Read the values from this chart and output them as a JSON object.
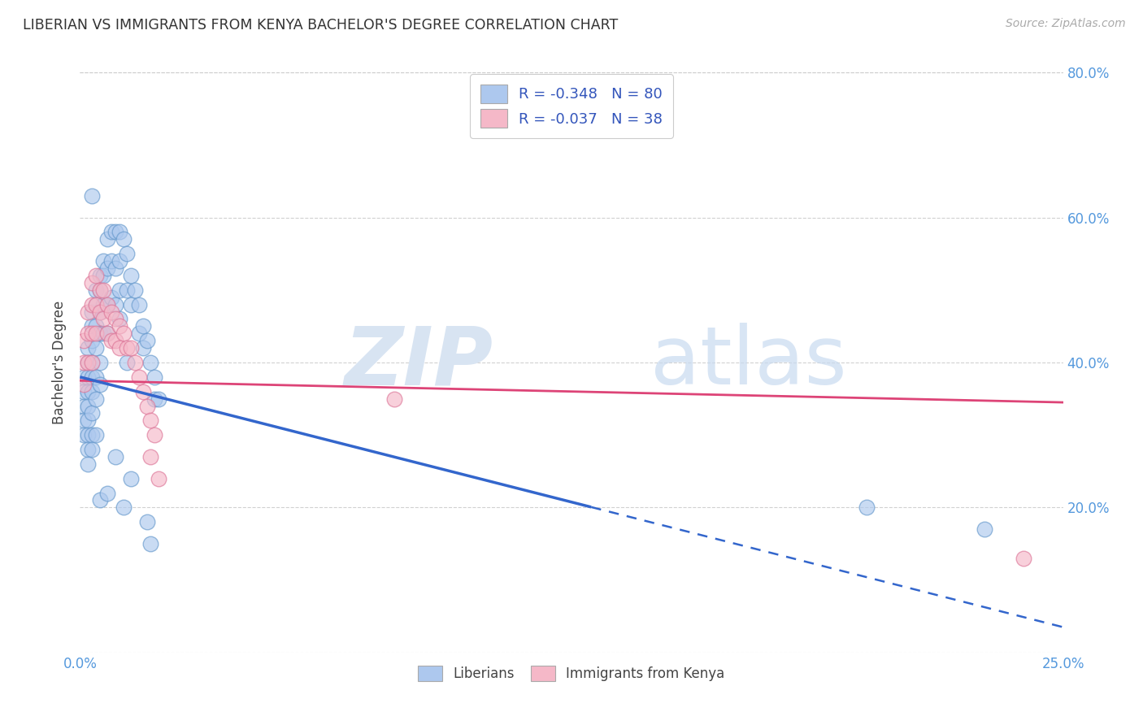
{
  "title": "LIBERIAN VS IMMIGRANTS FROM KENYA BACHELOR'S DEGREE CORRELATION CHART",
  "source": "Source: ZipAtlas.com",
  "ylabel": "Bachelor's Degree",
  "x_min": 0.0,
  "x_max": 0.25,
  "y_min": 0.0,
  "y_max": 0.8,
  "liberian_color": "#adc8ee",
  "kenya_color": "#f5b8c8",
  "liberian_edge": "#6699cc",
  "kenya_edge": "#dd7799",
  "trend_liberian_color": "#3366cc",
  "trend_kenya_color": "#dd4477",
  "legend_R1": "-0.348",
  "legend_N1": "80",
  "legend_R2": "-0.037",
  "legend_N2": "38",
  "liberian_x": [
    0.001,
    0.001,
    0.001,
    0.001,
    0.001,
    0.002,
    0.002,
    0.002,
    0.002,
    0.002,
    0.002,
    0.002,
    0.002,
    0.002,
    0.003,
    0.003,
    0.003,
    0.003,
    0.003,
    0.003,
    0.003,
    0.003,
    0.003,
    0.004,
    0.004,
    0.004,
    0.004,
    0.004,
    0.004,
    0.004,
    0.005,
    0.005,
    0.005,
    0.005,
    0.005,
    0.005,
    0.006,
    0.006,
    0.006,
    0.006,
    0.007,
    0.007,
    0.007,
    0.007,
    0.008,
    0.008,
    0.008,
    0.009,
    0.009,
    0.009,
    0.01,
    0.01,
    0.01,
    0.01,
    0.011,
    0.012,
    0.012,
    0.013,
    0.013,
    0.014,
    0.015,
    0.015,
    0.016,
    0.016,
    0.017,
    0.018,
    0.019,
    0.019,
    0.02,
    0.009,
    0.003,
    0.012,
    0.005,
    0.013,
    0.007,
    0.011,
    0.017,
    0.018,
    0.2,
    0.23
  ],
  "liberian_y": [
    0.38,
    0.36,
    0.34,
    0.32,
    0.3,
    0.42,
    0.4,
    0.38,
    0.36,
    0.34,
    0.32,
    0.3,
    0.28,
    0.26,
    0.47,
    0.45,
    0.43,
    0.4,
    0.38,
    0.36,
    0.33,
    0.3,
    0.28,
    0.5,
    0.48,
    0.45,
    0.42,
    0.38,
    0.35,
    0.3,
    0.52,
    0.5,
    0.47,
    0.44,
    0.4,
    0.37,
    0.54,
    0.52,
    0.48,
    0.44,
    0.57,
    0.53,
    0.48,
    0.44,
    0.58,
    0.54,
    0.49,
    0.58,
    0.53,
    0.48,
    0.58,
    0.54,
    0.5,
    0.46,
    0.57,
    0.55,
    0.5,
    0.52,
    0.48,
    0.5,
    0.48,
    0.44,
    0.45,
    0.42,
    0.43,
    0.4,
    0.38,
    0.35,
    0.35,
    0.27,
    0.63,
    0.4,
    0.21,
    0.24,
    0.22,
    0.2,
    0.18,
    0.15,
    0.2,
    0.17
  ],
  "kenya_x": [
    0.001,
    0.001,
    0.001,
    0.002,
    0.002,
    0.002,
    0.003,
    0.003,
    0.003,
    0.003,
    0.004,
    0.004,
    0.004,
    0.005,
    0.005,
    0.006,
    0.006,
    0.007,
    0.007,
    0.008,
    0.008,
    0.009,
    0.009,
    0.01,
    0.01,
    0.011,
    0.012,
    0.013,
    0.014,
    0.015,
    0.016,
    0.017,
    0.018,
    0.018,
    0.019,
    0.02,
    0.08,
    0.24
  ],
  "kenya_y": [
    0.43,
    0.4,
    0.37,
    0.47,
    0.44,
    0.4,
    0.51,
    0.48,
    0.44,
    0.4,
    0.52,
    0.48,
    0.44,
    0.5,
    0.47,
    0.5,
    0.46,
    0.48,
    0.44,
    0.47,
    0.43,
    0.46,
    0.43,
    0.45,
    0.42,
    0.44,
    0.42,
    0.42,
    0.4,
    0.38,
    0.36,
    0.34,
    0.32,
    0.27,
    0.3,
    0.24,
    0.35,
    0.13
  ],
  "fig_bg": "#ffffff",
  "plot_bg": "#ffffff"
}
